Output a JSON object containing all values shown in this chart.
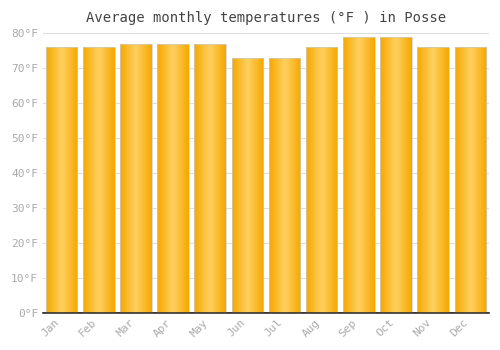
{
  "title": "Average monthly temperatures (°F ) in Posse",
  "months": [
    "Jan",
    "Feb",
    "Mar",
    "Apr",
    "May",
    "Jun",
    "Jul",
    "Aug",
    "Sep",
    "Oct",
    "Nov",
    "Dec"
  ],
  "values": [
    76,
    76,
    77,
    77,
    77,
    73,
    73,
    76,
    79,
    79,
    76,
    76
  ],
  "bar_color_center": "#FFD060",
  "bar_color_edge": "#F5A800",
  "background_color": "#FFFFFF",
  "plot_bg_color": "#FFFFFF",
  "grid_color": "#DDDDDD",
  "ylim": [
    0,
    80
  ],
  "yticks": [
    0,
    10,
    20,
    30,
    40,
    50,
    60,
    70,
    80
  ],
  "ytick_labels": [
    "0°F",
    "10°F",
    "20°F",
    "30°F",
    "40°F",
    "50°F",
    "60°F",
    "70°F",
    "80°F"
  ],
  "title_fontsize": 10,
  "tick_fontsize": 8,
  "tick_color": "#AAAAAA",
  "title_color": "#444444",
  "bar_width": 0.85,
  "bottom_line_color": "#333333"
}
